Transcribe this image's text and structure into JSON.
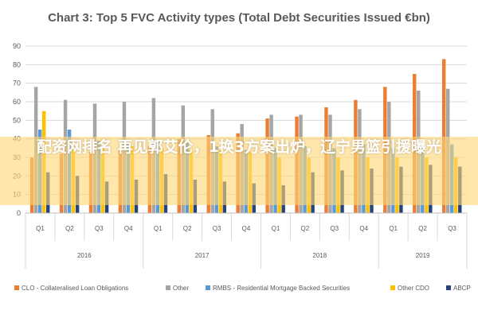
{
  "chart_data": {
    "type": "bar",
    "title": "Chart 3: Top 5 FVC Activity types (Total Debt Securities Issued €bn)",
    "xlabel": "",
    "ylabel": "",
    "ylim": [
      0,
      90
    ],
    "yticks": [
      0,
      10,
      20,
      30,
      40,
      50,
      60,
      70,
      80,
      90
    ],
    "grid": true,
    "legend_position": "bottom",
    "categories": [
      "Q1",
      "Q2",
      "Q3",
      "Q4",
      "Q1",
      "Q2",
      "Q3",
      "Q4",
      "Q1",
      "Q2",
      "Q3",
      "Q4",
      "Q1",
      "Q2",
      "Q3"
    ],
    "years": [
      {
        "label": "2016",
        "quarters": 4
      },
      {
        "label": "2017",
        "quarters": 4
      },
      {
        "label": "2018",
        "quarters": 4
      },
      {
        "label": "2019",
        "quarters": 3
      }
    ],
    "series": [
      {
        "name": "CLO - Collateralised Loan Obligations",
        "color": "#ED7D31",
        "values": [
          30,
          32,
          33,
          34,
          36,
          40,
          42,
          43,
          51,
          52,
          57,
          61,
          68,
          75,
          83
        ]
      },
      {
        "name": "Other",
        "color": "#A5A5A5",
        "values": [
          68,
          61,
          59,
          60,
          62,
          58,
          56,
          48,
          53,
          53,
          53,
          56,
          60,
          66,
          67
        ]
      },
      {
        "name": "RMBS - Residential Mortgage Backed Securities",
        "color": "#5B9BD5",
        "values": [
          45,
          45,
          39,
          38,
          39,
          38,
          36,
          34,
          35,
          36,
          35,
          37,
          35,
          36,
          37
        ]
      },
      {
        "name": "Other CDO",
        "color": "#FFC000",
        "values": [
          55,
          35,
          36,
          36,
          35,
          34,
          34,
          33,
          30,
          30,
          30,
          30,
          30,
          30,
          30
        ]
      },
      {
        "name": "ABCP",
        "color": "#264478",
        "values": [
          22,
          20,
          17,
          18,
          21,
          18,
          17,
          16,
          15,
          22,
          23,
          24,
          25,
          26,
          25
        ]
      }
    ]
  },
  "watermark": {
    "text": "配资网排名 再见郭艾伦，1换3方案出炉，辽宁男篮引援曝光"
  }
}
